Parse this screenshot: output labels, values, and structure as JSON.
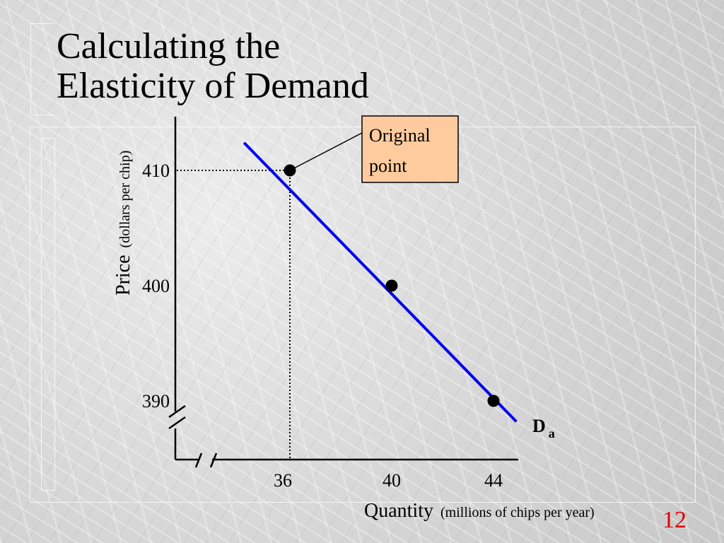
{
  "slide": {
    "title_line1": "Calculating the",
    "title_line2": "Elasticity of Demand",
    "page_number": "12"
  },
  "chart_data": {
    "type": "line",
    "title": "Calculating the Elasticity of Demand",
    "ylabel_main": "Price",
    "ylabel_unit": "(dollars per chip)",
    "xlabel_main": "Quantity",
    "xlabel_unit": "(millions of chips per year)",
    "x_ticks": [
      36,
      40,
      44
    ],
    "y_ticks": [
      390,
      400,
      410
    ],
    "xlim": [
      32,
      45
    ],
    "ylim": [
      387,
      414
    ],
    "axis_breaks": true,
    "grid": false,
    "series": [
      {
        "name": "Da",
        "name_main": "D",
        "name_sub": "a",
        "color": "#0000ee",
        "line": {
          "x": [
            34.2,
            44.9
          ],
          "y": [
            412.4,
            388.2
          ]
        },
        "points": [
          {
            "x": 36,
            "y": 410
          },
          {
            "x": 40,
            "y": 400
          },
          {
            "x": 44,
            "y": 390
          }
        ]
      }
    ],
    "guide_lines": {
      "x": 36,
      "y": 410,
      "style": "dotted"
    },
    "annotation": {
      "line1": "Original",
      "line2": "point",
      "x": 36,
      "y": 410,
      "fill": "#fdcb9e"
    }
  }
}
